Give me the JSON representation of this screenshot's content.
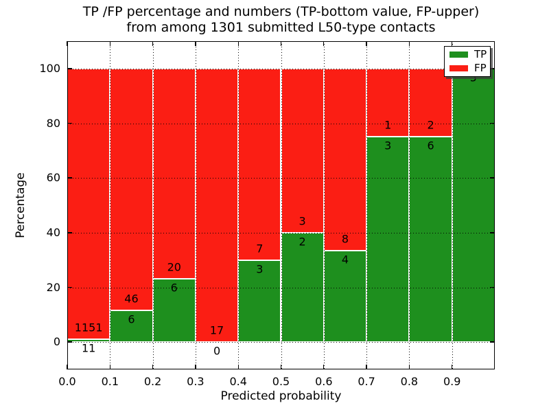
{
  "chart_data": {
    "type": "bar",
    "stacked": true,
    "title_line1": "TP /FP percentage and numbers (TP-bottom value, FP-upper)",
    "title_line2": "from among 1301 submitted L50-type contacts",
    "xlabel": "Predicted probability",
    "ylabel": "Percentage",
    "xlim": [
      0.0,
      1.0
    ],
    "ylim": [
      -10,
      110
    ],
    "x_ticks": [
      0.0,
      0.1,
      0.2,
      0.3,
      0.4,
      0.5,
      0.6,
      0.7,
      0.8,
      0.9
    ],
    "x_tick_labels": [
      "0.0",
      "0.1",
      "0.2",
      "0.3",
      "0.4",
      "0.5",
      "0.6",
      "0.7",
      "0.8",
      "0.9"
    ],
    "y_ticks": [
      0,
      20,
      40,
      60,
      80,
      100
    ],
    "y_tick_labels": [
      "0",
      "20",
      "40",
      "60",
      "80",
      "100"
    ],
    "grid": true,
    "bin_width": 0.1,
    "bins": [
      {
        "x_start": 0.0,
        "tp": 11,
        "fp": 1151,
        "tp_pct": 0.95
      },
      {
        "x_start": 0.1,
        "tp": 6,
        "fp": 46,
        "tp_pct": 11.54
      },
      {
        "x_start": 0.2,
        "tp": 6,
        "fp": 20,
        "tp_pct": 23.08
      },
      {
        "x_start": 0.3,
        "tp": 0,
        "fp": 17,
        "tp_pct": 0.0
      },
      {
        "x_start": 0.4,
        "tp": 3,
        "fp": 7,
        "tp_pct": 30.0
      },
      {
        "x_start": 0.5,
        "tp": 2,
        "fp": 3,
        "tp_pct": 40.0
      },
      {
        "x_start": 0.6,
        "tp": 4,
        "fp": 8,
        "tp_pct": 33.33
      },
      {
        "x_start": 0.7,
        "tp": 3,
        "fp": 1,
        "tp_pct": 75.0
      },
      {
        "x_start": 0.8,
        "tp": 6,
        "fp": 2,
        "tp_pct": 75.0
      },
      {
        "x_start": 0.9,
        "tp": 5,
        "fp": 0,
        "tp_pct": 100.0
      }
    ],
    "legend": {
      "position": "upper right",
      "entries": [
        {
          "label": "TP",
          "color": "#1e8f1e"
        },
        {
          "label": "FP",
          "color": "#fb1e14"
        }
      ]
    },
    "colors": {
      "tp": "#1e8f1e",
      "fp": "#fb1e14",
      "bar_edge": "#ffffff",
      "grid": "#000000",
      "text": "#000000",
      "background": "#ffffff"
    }
  }
}
